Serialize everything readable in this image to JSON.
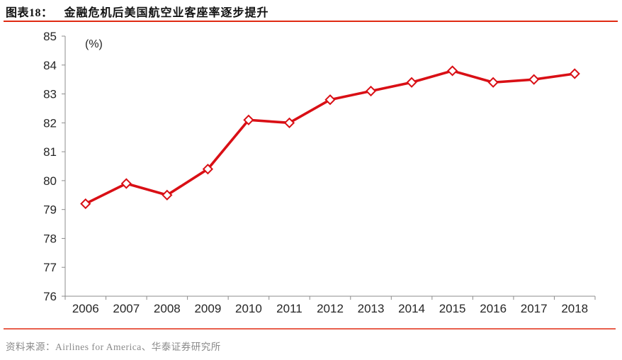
{
  "header": {
    "figure_label": "图表18：",
    "figure_title": "金融危机后美国航空业客座率逐步提升"
  },
  "footer": {
    "source_label": "资料来源：",
    "sources": "Airlines for America、华泰证券研究所"
  },
  "colors": {
    "accent_rule": "#E02A12",
    "series_line": "#D90F15",
    "marker_fill": "#FFFFFF",
    "axis_line": "#8C8C8C",
    "axis_text": "#262626",
    "title_text": "#111111",
    "footer_text": "#8A8A8A"
  },
  "chart_data": {
    "type": "line",
    "title": "金融危机后美国航空业客座率逐步提升",
    "unit_label": "(%)",
    "categories": [
      "2006",
      "2007",
      "2008",
      "2009",
      "2010",
      "2011",
      "2012",
      "2013",
      "2014",
      "2015",
      "2016",
      "2017",
      "2018"
    ],
    "values": [
      79.2,
      79.9,
      79.5,
      80.4,
      82.1,
      82.0,
      82.8,
      83.1,
      83.4,
      83.8,
      83.4,
      83.5,
      83.7
    ],
    "ylim": [
      76,
      85
    ],
    "y_tick_step": 1,
    "xlabel": "",
    "ylabel": "(%)",
    "grid": false,
    "legend": false,
    "marker": "open-diamond",
    "line_color": "#D90F15"
  }
}
